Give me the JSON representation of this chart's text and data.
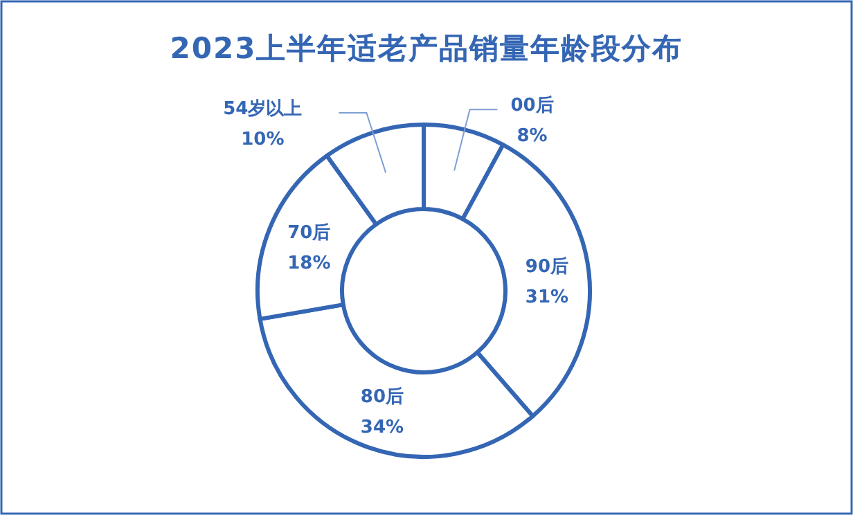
{
  "chart_data": {
    "type": "donut",
    "title": "2023上半年适老产品销量年龄段分布",
    "categories": [
      "00后",
      "90后",
      "80后",
      "70后",
      "54岁以上"
    ],
    "values": [
      8,
      31,
      34,
      18,
      10
    ],
    "value_labels": [
      "8%",
      "31%",
      "34%",
      "18%",
      "10%"
    ],
    "colors": [
      "#ffffff",
      "#ffffff",
      "#ffffff",
      "#ffffff",
      "#ffffff"
    ]
  }
}
